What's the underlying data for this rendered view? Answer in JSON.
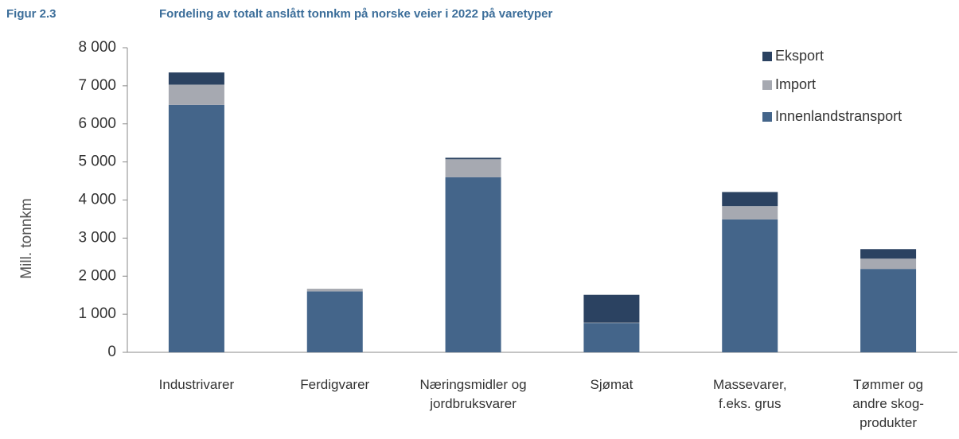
{
  "chart_data": {
    "type": "bar",
    "stacked": true,
    "figure_label": "Figur 2.3",
    "title": "Fordeling av totalt anslått tonnkm på norske veier i 2022 på varetyper",
    "ylabel": "Mill. tonnkm",
    "categories": [
      "Industrivarer",
      "Ferdigvarer",
      "Næringsmidler og\njordbruksvarer",
      "Sjømat",
      "Massevarer,\nf.eks. grus",
      "Tømmer og\nandre skog-\nprodukter"
    ],
    "series": [
      {
        "name": "Innenlandstransport",
        "color": "#44658a",
        "values": [
          6500,
          1600,
          4600,
          770,
          3490,
          2190
        ]
      },
      {
        "name": "Import",
        "color": "#a6a9b1",
        "values": [
          530,
          70,
          470,
          10,
          350,
          270
        ]
      },
      {
        "name": "Eksport",
        "color": "#2b4261",
        "values": [
          320,
          0,
          40,
          730,
          370,
          250
        ]
      }
    ],
    "ylim": [
      0,
      8000
    ],
    "yticks": [
      0,
      {
        "value": 1000,
        "label": "1 000"
      },
      {
        "value": 2000,
        "label": "2 000"
      },
      {
        "value": 3000,
        "label": "3 000"
      },
      {
        "value": 4000,
        "label": "4 000"
      },
      {
        "value": 5000,
        "label": "5 000"
      },
      {
        "value": 6000,
        "label": "6 000"
      },
      {
        "value": 7000,
        "label": "7 000"
      },
      {
        "value": 8000,
        "label": "8 000"
      }
    ],
    "grid": false,
    "legend": "upper right"
  }
}
